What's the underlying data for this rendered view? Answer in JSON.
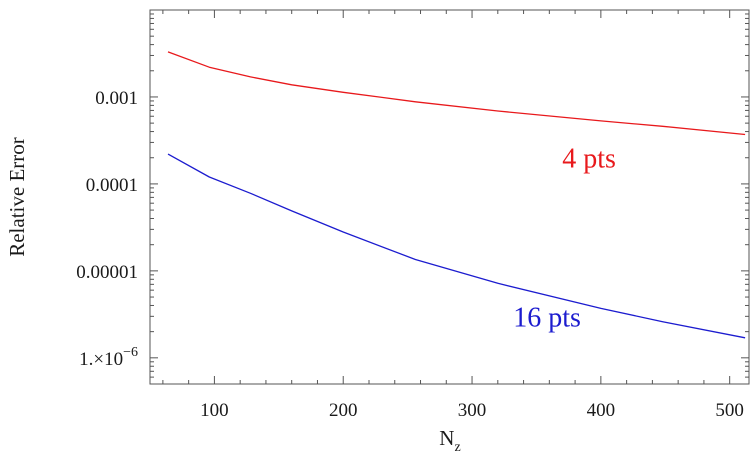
{
  "chart_data": {
    "type": "line",
    "title": "",
    "xlabel": "N",
    "xlabel_subscript": "z",
    "ylabel": "Relative Error",
    "x_scale": "linear",
    "y_scale": "log",
    "xlim": [
      50,
      515
    ],
    "ylim": [
      5e-07,
      0.01
    ],
    "grid": false,
    "x_ticks": [
      {
        "value": 100,
        "label": "100"
      },
      {
        "value": 200,
        "label": "200"
      },
      {
        "value": 300,
        "label": "300"
      },
      {
        "value": 400,
        "label": "400"
      },
      {
        "value": 500,
        "label": "500"
      }
    ],
    "y_ticks": [
      {
        "value": 0.001,
        "label": "0.001"
      },
      {
        "value": 0.0001,
        "label": "0.0001"
      },
      {
        "value": 1e-05,
        "label": "0.00001"
      },
      {
        "value": 1e-06,
        "label": "1.×10",
        "exp": "−6"
      }
    ],
    "series": [
      {
        "name": "4 pts",
        "color": "#e8191c",
        "x": [
          64,
          96,
          128,
          160,
          200,
          256,
          320,
          400,
          448,
          512
        ],
        "y": [
          0.0033,
          0.0022,
          0.0017,
          0.00138,
          0.00113,
          0.00088,
          0.00069,
          0.00053,
          0.00046,
          0.00037
        ]
      },
      {
        "name": "16 pts",
        "color": "#1c1ccf",
        "x": [
          64,
          96,
          128,
          160,
          200,
          256,
          320,
          400,
          448,
          512
        ],
        "y": [
          0.00022,
          0.00012,
          7.8e-05,
          4.9e-05,
          2.8e-05,
          1.35e-05,
          7.2e-06,
          3.7e-06,
          2.6e-06,
          1.7e-06
        ]
      }
    ],
    "annotations": [
      {
        "text": "4 pts",
        "series": "4 pts",
        "x": 370,
        "y": 0.000155
      },
      {
        "text": "16 pts",
        "series": "16 pts",
        "x": 332,
        "y": 2.3e-06
      }
    ]
  }
}
